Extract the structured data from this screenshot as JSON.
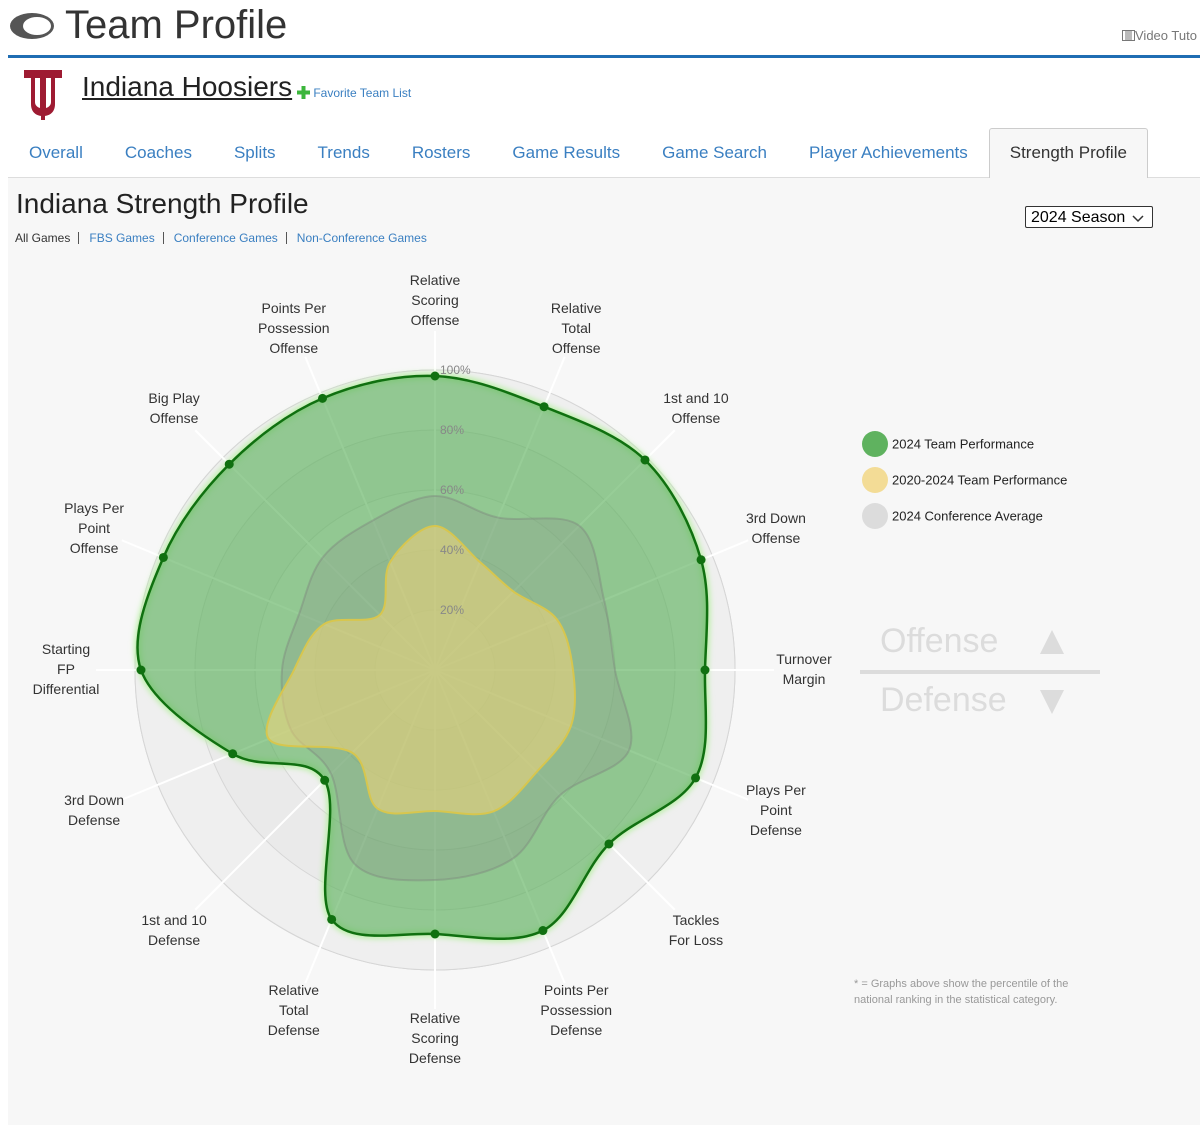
{
  "header": {
    "title": "Team Profile",
    "video_link": "Video Tuto"
  },
  "team": {
    "name": "Indiana Hoosiers",
    "favorite_link": "Favorite Team List"
  },
  "tabs": [
    {
      "label": "Overall",
      "active": false
    },
    {
      "label": "Coaches",
      "active": false
    },
    {
      "label": "Splits",
      "active": false
    },
    {
      "label": "Trends",
      "active": false
    },
    {
      "label": "Rosters",
      "active": false
    },
    {
      "label": "Game Results",
      "active": false
    },
    {
      "label": "Game Search",
      "active": false
    },
    {
      "label": "Player Achievements",
      "active": false
    },
    {
      "label": "Strength Profile",
      "active": true
    }
  ],
  "page_title": "Indiana Strength Profile",
  "filters": [
    {
      "label": "All Games",
      "active": true
    },
    {
      "label": "FBS Games",
      "active": false
    },
    {
      "label": "Conference Games",
      "active": false
    },
    {
      "label": "Non-Conference Games",
      "active": false
    }
  ],
  "season_select": "2024 Season",
  "chart_data": {
    "type": "radar",
    "categories": [
      [
        "Relative",
        "Scoring",
        "Offense"
      ],
      [
        "Relative",
        "Total",
        "Offense"
      ],
      [
        "1st and 10",
        "Offense"
      ],
      [
        "3rd Down",
        "Offense"
      ],
      [
        "Turnover",
        "Margin"
      ],
      [
        "Plays Per",
        "Point",
        "Defense"
      ],
      [
        "Tackles",
        "For Loss"
      ],
      [
        "Points Per",
        "Possession",
        "Defense"
      ],
      [
        "Relative",
        "Scoring",
        "Defense"
      ],
      [
        "Relative",
        "Total",
        "Defense"
      ],
      [
        "1st and 10",
        "Defense"
      ],
      [
        "3rd Down",
        "Defense"
      ],
      [
        "Starting",
        "FP",
        "Differential"
      ],
      [
        "Plays Per",
        "Point",
        "Offense"
      ],
      [
        "Big Play",
        "Offense"
      ],
      [
        "Points Per",
        "Possession",
        "Offense"
      ]
    ],
    "rlim": [
      0,
      100
    ],
    "rticks": [
      {
        "value": 20,
        "label": "20%"
      },
      {
        "value": 40,
        "label": "40%"
      },
      {
        "value": 60,
        "label": "60%"
      },
      {
        "value": 80,
        "label": "80%"
      },
      {
        "value": 100,
        "label": "100%"
      }
    ],
    "series": [
      {
        "name": "2024 Team Performance",
        "color": "#5fb25f",
        "values": [
          98,
          95,
          99,
          96,
          90,
          94,
          82,
          94,
          88,
          90,
          52,
          73,
          98,
          98,
          97,
          98
        ]
      },
      {
        "name": "2020-2024 Team Performance",
        "color": "#f3dc96",
        "values": [
          48,
          39,
          37,
          44,
          46,
          49,
          48,
          51,
          47,
          50,
          39,
          60,
          47,
          40,
          26,
          39
        ]
      },
      {
        "name": "2024 Conference Average",
        "color": "#dcdcdc",
        "values": [
          58,
          55,
          68,
          61,
          60,
          70,
          59,
          68,
          70,
          70,
          49,
          52,
          51,
          49,
          53,
          54
        ]
      }
    ]
  },
  "direction_key": {
    "top": "Offense",
    "bottom": "Defense"
  },
  "footnote": "* = Graphs above show the percentile of the national ranking in the statistical category."
}
